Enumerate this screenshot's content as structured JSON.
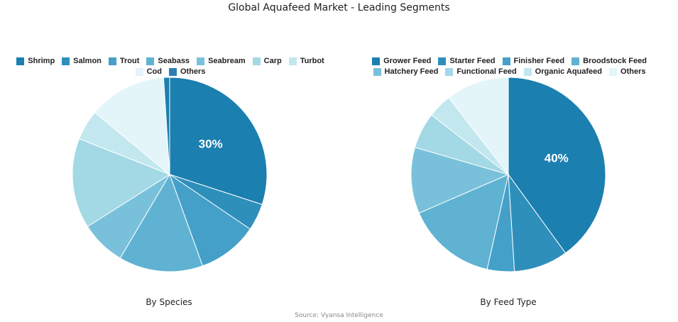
{
  "title": "Global Aquafeed Market - Leading Segments",
  "source": "Source: Vyansa Intelligence",
  "chart_data": [
    {
      "type": "pie",
      "caption": "By Species",
      "categories": [
        "Shrimp",
        "Salmon",
        "Trout",
        "Seabass",
        "Seabream",
        "Carp",
        "Turbot",
        "Cod",
        "Others"
      ],
      "values": [
        30,
        4.5,
        10,
        14,
        7.5,
        15,
        5,
        13,
        1
      ],
      "data_labels": [
        "30%",
        "",
        "",
        "",
        "",
        "",
        "",
        "",
        ""
      ],
      "colors": [
        "#1b7fb0",
        "#2e8fbb",
        "#44a0c8",
        "#5fb2d2",
        "#79c1da",
        "#a3d8e5",
        "#c2e7ee",
        "#e3f5f9",
        "#1b7fb0"
      ],
      "legend_colors": [
        "#1b7fb0",
        "#2e8fbb",
        "#44a0c8",
        "#5fb2d2",
        "#79c1da",
        "#a3d8e5",
        "#c2e7ee",
        "#e3f5f9",
        "#2b7eb4"
      ],
      "start_angle_deg": 0,
      "legend_position": "top"
    },
    {
      "type": "pie",
      "caption": "By Feed Type",
      "categories": [
        "Grower Feed",
        "Starter Feed",
        "Finisher Feed",
        "Broodstock Feed",
        "Hatchery Feed",
        "Functional Feed",
        "Organic Aquafeed",
        "Others"
      ],
      "values": [
        40,
        9,
        4.5,
        15,
        11,
        6,
        4,
        10.5
      ],
      "data_labels": [
        "40%",
        "",
        "",
        "",
        "",
        "",
        "",
        ""
      ],
      "colors": [
        "#1b7fb0",
        "#2e8fbb",
        "#44a0c8",
        "#5fb2d2",
        "#79c1da",
        "#a3d8e5",
        "#c2e7ee",
        "#e3f5f9"
      ],
      "legend_colors": [
        "#1b7fb0",
        "#2e8fbb",
        "#44a0c8",
        "#5fb2d2",
        "#79c1da",
        "#a3d8e5",
        "#c2e7ee",
        "#e3f5f9"
      ],
      "start_angle_deg": 0,
      "legend_position": "top"
    }
  ]
}
